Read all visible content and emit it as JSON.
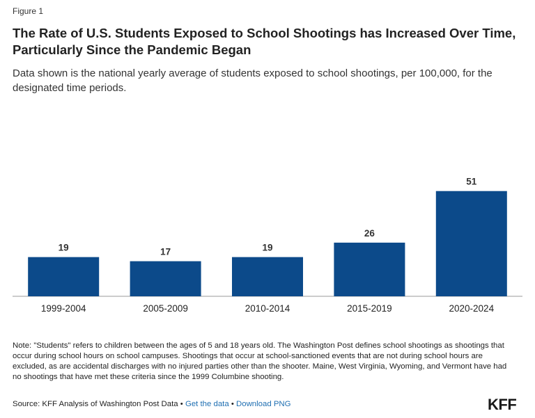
{
  "figure_label": "Figure 1",
  "title": "The Rate of U.S. Students Exposed to School Shootings has Increased Over Time, Particularly Since the Pandemic Began",
  "subtitle": "Data shown is the national yearly average of students exposed to school shootings, per 100,000, for the designated time periods.",
  "chart_data": {
    "type": "bar",
    "categories": [
      "1999-2004",
      "2005-2009",
      "2010-2014",
      "2015-2019",
      "2020-2024"
    ],
    "values": [
      19,
      17,
      19,
      26,
      51
    ],
    "data_labels": [
      "19",
      "17",
      "19",
      "26",
      "51"
    ],
    "title": "",
    "xlabel": "",
    "ylabel": "",
    "ylim": [
      0,
      60
    ],
    "grid": false,
    "bar_color": "#0c4a8a"
  },
  "note": "Note: \"Students\" refers to children between the ages of 5 and 18 years old. The Washington Post defines school shootings as shootings that occur during school hours on school campuses. Shootings that occur at school-sanctioned events that are not during school hours are excluded, as are accidental discharges with no injured parties other than the shooter. Maine, West Virginia, Wyoming, and Vermont have had no shootings that have met these criteria since the 1999 Columbine shooting.",
  "source": {
    "text": "Source: KFF Analysis of Washington Post Data",
    "separator": "•",
    "get_data_label": "Get the data",
    "download_label": "Download PNG"
  },
  "logo_text": "KFF"
}
